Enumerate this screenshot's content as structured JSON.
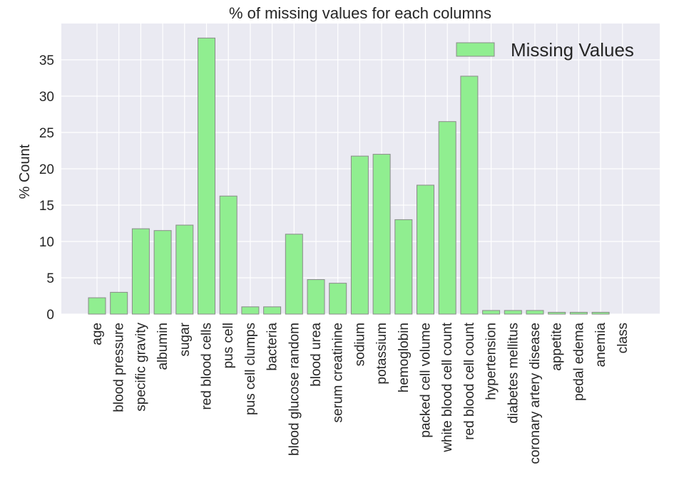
{
  "chart_data": {
    "type": "bar",
    "title": "% of missing values for each columns",
    "xlabel": "",
    "ylabel": "% Count",
    "ylim": [
      0,
      40
    ],
    "yticks": [
      0,
      5,
      10,
      15,
      20,
      25,
      30,
      35
    ],
    "grid": true,
    "legend_position": "top-right",
    "categories": [
      "age",
      "blood pressure",
      "specific gravity",
      "albumin",
      "sugar",
      "red blood cells",
      "pus cell",
      "pus cell clumps",
      "bacteria",
      "blood glucose random",
      "blood urea",
      "serum creatinine",
      "sodium",
      "potassium",
      "hemoglobin",
      "packed cell volume",
      "white blood cell count",
      "red blood cell count",
      "hypertension",
      "diabetes mellitus",
      "coronary artery disease",
      "appetite",
      "pedal edema",
      "anemia",
      "class"
    ],
    "series": [
      {
        "name": "Missing Values",
        "color": "#90ee90",
        "edge_color": "#8a8a8a",
        "values": [
          2.25,
          3.0,
          11.75,
          11.5,
          12.25,
          38.0,
          16.25,
          1.0,
          1.0,
          11.0,
          4.75,
          4.25,
          21.75,
          22.0,
          13.0,
          17.75,
          26.5,
          32.75,
          0.5,
          0.5,
          0.5,
          0.25,
          0.25,
          0.25,
          0.0
        ]
      }
    ],
    "background_color": "#eaeaf2",
    "grid_color": "#ffffff"
  }
}
